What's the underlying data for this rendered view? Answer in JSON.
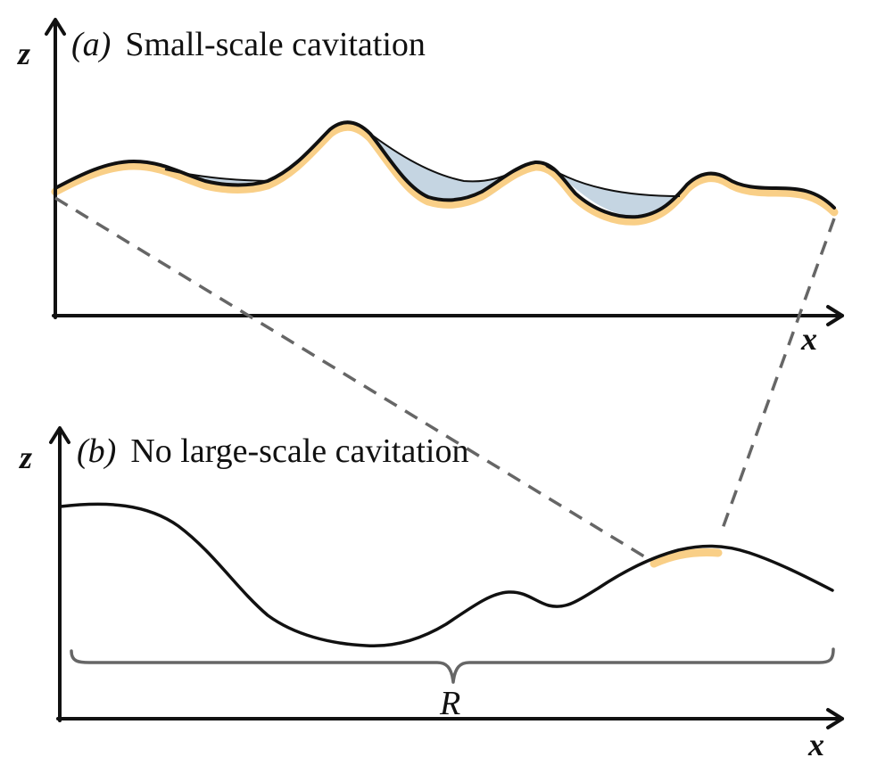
{
  "panel_a": {
    "tag": "(a)",
    "title": "Small-scale cavitation",
    "y_axis_label": "z",
    "x_axis_label": "x"
  },
  "panel_b": {
    "tag": "(b)",
    "title": "No large-scale cavitation",
    "y_axis_label": "z",
    "x_axis_label": "x",
    "brace_label": "R"
  },
  "colors": {
    "surface": "#111111",
    "highlight": "#f9cf87",
    "cavity_fill": "#c5d5e2",
    "zoom_lines": "#666666",
    "brace": "#666666"
  }
}
